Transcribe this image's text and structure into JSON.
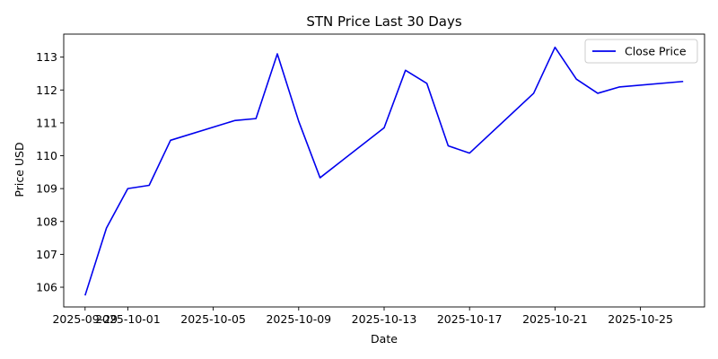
{
  "chart_data": {
    "type": "line",
    "title": "STN Price Last 30 Days",
    "xlabel": "Date",
    "ylabel": "Price USD",
    "grid": false,
    "legend_position": "top-right",
    "x_range": [
      "2025-09-28",
      "2025-10-28"
    ],
    "y_range": [
      105.4,
      113.7
    ],
    "y_ticks": [
      106,
      107,
      108,
      109,
      110,
      111,
      112,
      113
    ],
    "x_ticks": [
      "2025-09-29",
      "2025-10-01",
      "2025-10-05",
      "2025-10-09",
      "2025-10-13",
      "2025-10-17",
      "2025-10-21",
      "2025-10-25"
    ],
    "series": [
      {
        "name": "Close Price",
        "color": "#0000ee",
        "x": [
          "2025-09-29",
          "2025-09-30",
          "2025-10-01",
          "2025-10-02",
          "2025-10-03",
          "2025-10-06",
          "2025-10-07",
          "2025-10-08",
          "2025-10-09",
          "2025-10-10",
          "2025-10-13",
          "2025-10-14",
          "2025-10-15",
          "2025-10-16",
          "2025-10-17",
          "2025-10-20",
          "2025-10-21",
          "2025-10-22",
          "2025-10-23",
          "2025-10-24",
          "2025-10-27"
        ],
        "y": [
          105.75,
          107.8,
          109.0,
          109.1,
          110.47,
          111.07,
          111.13,
          113.1,
          111.05,
          109.33,
          110.85,
          112.6,
          112.2,
          110.3,
          110.08,
          111.9,
          113.3,
          112.33,
          111.9,
          112.09,
          112.26
        ]
      }
    ]
  }
}
